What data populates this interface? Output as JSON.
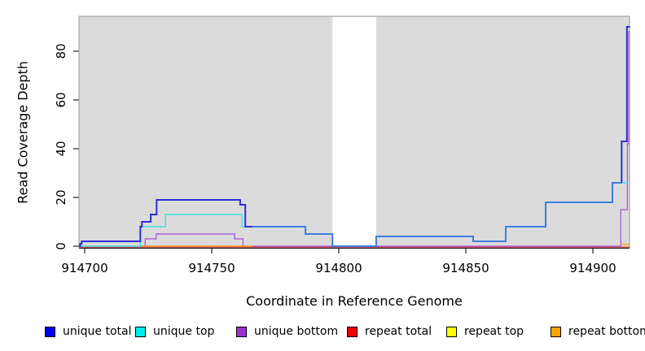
{
  "chart_data": {
    "type": "line",
    "subtype": "step-coverage",
    "title": "",
    "xlabel": "Coordinate in Reference Genome",
    "ylabel": "Read Coverage Depth",
    "x_ticks": {
      "values": [
        914700,
        914750,
        914800,
        914850,
        914900
      ],
      "labels": [
        "914700",
        "914750",
        "914800",
        "914850",
        "914900"
      ]
    },
    "y_ticks": {
      "values": [
        0,
        20,
        40,
        60,
        80
      ],
      "labels": [
        "0",
        "20",
        "40",
        "60",
        "80"
      ]
    },
    "xlim": [
      914697.8,
      914914.6
    ],
    "ylim": [
      0,
      94
    ],
    "grid": false,
    "legend_position": "bottom",
    "plot_bg_color": "#DBDBDB",
    "plot_border_color": "#A6A6A6",
    "axis_color": "#222222",
    "gap_region": {
      "x1": 914797.5,
      "x2": 914814.7,
      "color": "#FFFFFF"
    },
    "series": [
      {
        "name": "repeat top",
        "color": "#FFFF00",
        "width": 1.2,
        "steps": [
          [
            914697.8,
            -0.3
          ],
          [
            914914.6,
            -0.3
          ]
        ]
      },
      {
        "name": "unique bottom",
        "color": "#AE62DC",
        "width": 1.4,
        "steps": [
          [
            914721.9,
            0
          ],
          [
            914723.8,
            3
          ],
          [
            914728.1,
            5
          ],
          [
            914759.0,
            3
          ],
          [
            914762.3,
            0
          ],
          [
            914911.0,
            0
          ],
          [
            914911.0,
            15
          ],
          [
            914913.6,
            15
          ],
          [
            914913.6,
            42
          ],
          [
            914914.1,
            42
          ],
          [
            914914.1,
            88
          ],
          [
            914914.6,
            88
          ]
        ]
      },
      {
        "name": "repeat total",
        "color": "#E8415C",
        "width": 1.3,
        "steps": [
          [
            914697.8,
            -0.35
          ],
          [
            914914.6,
            -0.35
          ]
        ]
      },
      {
        "name": "repeat bottom",
        "color": "#FF9E14",
        "width": 1.5,
        "steps": [
          [
            914721.9,
            0
          ],
          [
            914766.0,
            0
          ]
        ]
      },
      {
        "name": "repeat bottom",
        "color": "#FF9E14",
        "width": 1.5,
        "steps": [
          [
            914911.0,
            0.8
          ],
          [
            914914.6,
            0.8
          ]
        ]
      },
      {
        "name": "unique top",
        "color": "#3BE3DB",
        "width": 1.4,
        "steps": [
          [
            914697.8,
            0
          ],
          [
            914721.9,
            8
          ],
          [
            914731.8,
            13
          ],
          [
            914761.9,
            8
          ],
          [
            914786.9,
            5
          ],
          [
            914797.5,
            0
          ],
          [
            914814.7,
            4
          ],
          [
            914852.9,
            2
          ],
          [
            914865.7,
            8
          ],
          [
            914881.4,
            18
          ],
          [
            914907.7,
            26
          ],
          [
            914913.8,
            26
          ]
        ]
      },
      {
        "name": "unique total",
        "color": "#3F7DE3",
        "width": 2,
        "steps": [
          [
            914766.0,
            8
          ],
          [
            914786.9,
            5
          ],
          [
            914797.5,
            0
          ],
          [
            914814.7,
            4
          ],
          [
            914852.9,
            2
          ],
          [
            914865.7,
            8
          ],
          [
            914881.4,
            18
          ],
          [
            914907.7,
            26
          ],
          [
            914911.3,
            26
          ]
        ]
      },
      {
        "name": "unique total",
        "color": "#2E2ED6",
        "width": 2,
        "steps": [
          [
            914697.8,
            0
          ],
          [
            914698.2,
            1
          ],
          [
            914698.8,
            2
          ],
          [
            914721.9,
            8
          ],
          [
            914722.5,
            10
          ],
          [
            914726.0,
            13
          ],
          [
            914728.3,
            19
          ],
          [
            914761.2,
            17
          ],
          [
            914763.2,
            8
          ],
          [
            914766.0,
            8
          ]
        ]
      },
      {
        "name": "unique total",
        "color": "#2E2ED6",
        "width": 2,
        "steps": [
          [
            914911.3,
            26
          ],
          [
            914911.3,
            43
          ],
          [
            914913.4,
            43
          ],
          [
            914913.4,
            90
          ],
          [
            914914.6,
            90
          ]
        ]
      }
    ],
    "legend": [
      {
        "label": "unique total",
        "color": "#0000EE"
      },
      {
        "label": "unique top",
        "color": "#00EEEE"
      },
      {
        "label": "unique bottom",
        "color": "#9A32CD"
      },
      {
        "label": "repeat total",
        "color": "#EE0000"
      },
      {
        "label": "repeat top",
        "color": "#FFFF00"
      },
      {
        "label": "repeat bottom",
        "color": "#FFA500"
      }
    ]
  }
}
